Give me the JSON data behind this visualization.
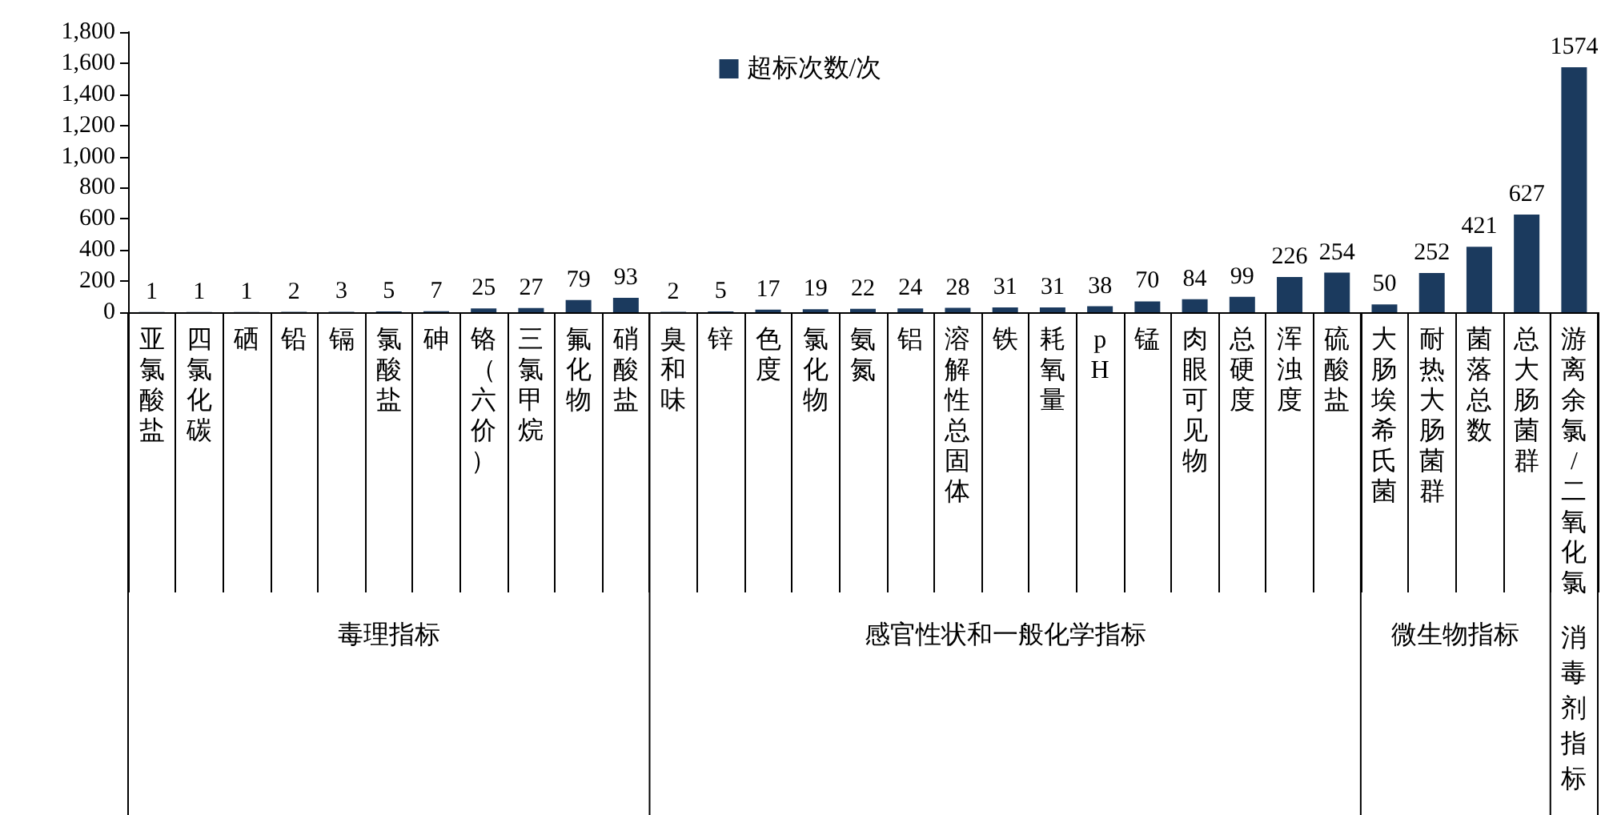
{
  "chart_data": {
    "type": "bar",
    "categories": [
      "亚氯酸盐",
      "四氯化碳",
      "硒",
      "铅",
      "镉",
      "氯酸盐",
      "砷",
      "铬（六价）",
      "三氯甲烷",
      "氟化物",
      "硝酸盐",
      "臭和味",
      "锌",
      "色度",
      "氯化物",
      "氨氮",
      "铝",
      "溶解性总固体",
      "铁",
      "耗氧量",
      "pH",
      "锰",
      "肉眼可见物",
      "总硬度",
      "浑浊度",
      "硫酸盐",
      "大肠埃希氏菌",
      "耐热大肠菌群",
      "菌落总数",
      "总大肠菌群",
      "游离余氯/二氧化氯"
    ],
    "series": [
      {
        "name": "超标次数/次",
        "color": "#1b3a5e",
        "values": [
          1,
          1,
          1,
          2,
          3,
          5,
          7,
          25,
          27,
          79,
          93,
          2,
          5,
          17,
          19,
          22,
          24,
          28,
          31,
          31,
          38,
          70,
          84,
          99,
          226,
          254,
          50,
          252,
          421,
          627,
          1574
        ]
      }
    ],
    "ylim": [
      0,
      1800
    ],
    "yticks": [
      0,
      200,
      400,
      600,
      800,
      {
        "value": 1000,
        "label": "1,000"
      },
      {
        "value": 1200,
        "label": "1,200"
      },
      {
        "value": 1400,
        "label": "1,400"
      },
      {
        "value": 1600,
        "label": "1,600"
      },
      {
        "value": 1800,
        "label": "1,800"
      }
    ],
    "annotations": [
      "毒理指标",
      "感官性状和一般化学指标",
      "微生物指标",
      "消毒剂指标"
    ],
    "data_labels": true,
    "grid": false,
    "legend": "top"
  }
}
